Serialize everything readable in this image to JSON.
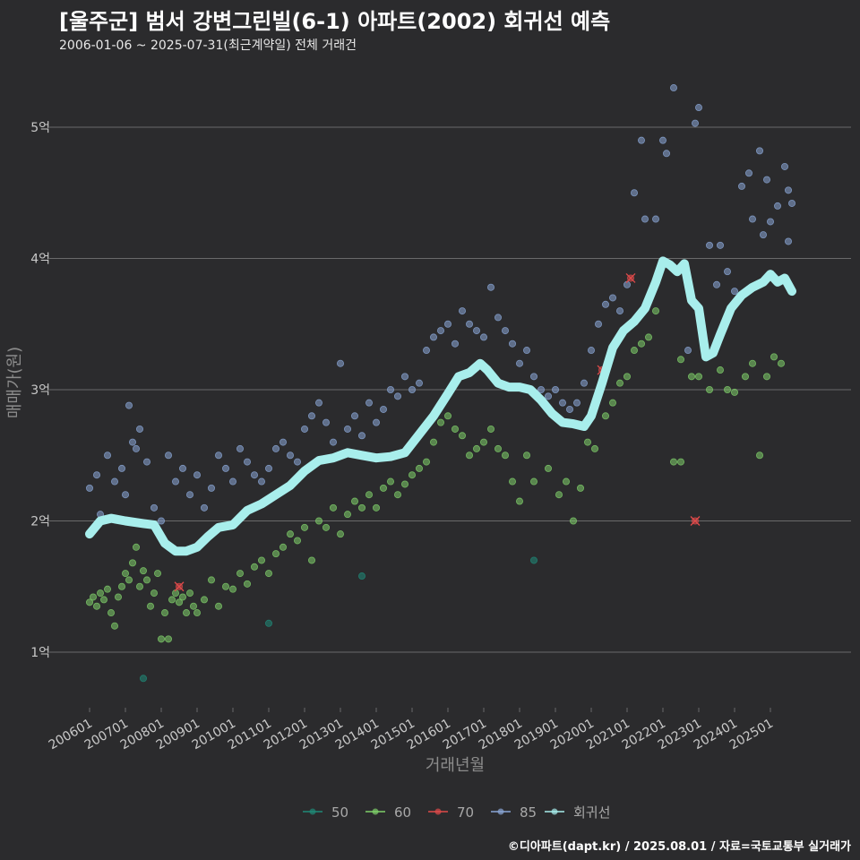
{
  "header": {
    "title": "[울주군] 범서 강변그린빌(6-1) 아파트(2002) 회귀선 예측",
    "subtitle": "2006-01-06 ~ 2025-07-31(최근계약일) 전체 거래건"
  },
  "footer": {
    "credit": "©디아파트(dapt.kr) / 2025.08.01 / 자료=국토교통부 실거래가"
  },
  "colors": {
    "s50": "#1f8a78",
    "s60": "#7fd06a",
    "s70": "#e04a4a",
    "s85": "#8aa6d6",
    "regression": "#a8eeec",
    "grid": "#6a6a6a",
    "background": "#2b2b2d"
  },
  "chart_data": {
    "type": "scatter",
    "xlabel": "거래년월",
    "ylabel": "매매가(원)",
    "x_ticks": [
      "200601",
      "200701",
      "200801",
      "200901",
      "201001",
      "201101",
      "201201",
      "201301",
      "201401",
      "201501",
      "201601",
      "201701",
      "201801",
      "201901",
      "202001",
      "202101",
      "202201",
      "202301",
      "202401",
      "202501"
    ],
    "y_ticks": [
      {
        "value": 1,
        "label": "1억"
      },
      {
        "value": 2,
        "label": "2억"
      },
      {
        "value": 3,
        "label": "3억"
      },
      {
        "value": 4,
        "label": "4억"
      },
      {
        "value": 5,
        "label": "5억"
      }
    ],
    "ylim": [
      0.6,
      5.5
    ],
    "xlim": [
      2005.6,
      2026.1
    ],
    "y_unit": "억",
    "legend_position": "bottom",
    "legend": [
      "50",
      "60",
      "70",
      "85",
      "회귀선"
    ],
    "series": [
      {
        "name": "50",
        "points": [
          [
            2007.5,
            0.8
          ],
          [
            2011.0,
            1.22
          ],
          [
            2013.6,
            1.58
          ],
          [
            2018.4,
            1.7
          ]
        ]
      },
      {
        "name": "60",
        "points": [
          [
            2006.0,
            1.38
          ],
          [
            2006.1,
            1.42
          ],
          [
            2006.2,
            1.35
          ],
          [
            2006.3,
            1.45
          ],
          [
            2006.4,
            1.4
          ],
          [
            2006.5,
            1.48
          ],
          [
            2006.6,
            1.3
          ],
          [
            2006.7,
            1.2
          ],
          [
            2006.8,
            1.42
          ],
          [
            2006.9,
            1.5
          ],
          [
            2007.0,
            1.6
          ],
          [
            2007.1,
            1.55
          ],
          [
            2007.2,
            1.68
          ],
          [
            2007.3,
            1.8
          ],
          [
            2007.4,
            1.5
          ],
          [
            2007.5,
            1.62
          ],
          [
            2007.6,
            1.55
          ],
          [
            2007.7,
            1.35
          ],
          [
            2007.8,
            1.45
          ],
          [
            2007.9,
            1.6
          ],
          [
            2008.0,
            1.1
          ],
          [
            2008.1,
            1.3
          ],
          [
            2008.2,
            1.1
          ],
          [
            2008.3,
            1.4
          ],
          [
            2008.4,
            1.45
          ],
          [
            2008.5,
            1.38
          ],
          [
            2008.6,
            1.42
          ],
          [
            2008.7,
            1.3
          ],
          [
            2008.8,
            1.45
          ],
          [
            2008.9,
            1.35
          ],
          [
            2009.0,
            1.3
          ],
          [
            2009.2,
            1.4
          ],
          [
            2009.4,
            1.55
          ],
          [
            2009.6,
            1.35
          ],
          [
            2009.8,
            1.5
          ],
          [
            2010.0,
            1.48
          ],
          [
            2010.2,
            1.6
          ],
          [
            2010.4,
            1.52
          ],
          [
            2010.6,
            1.65
          ],
          [
            2010.8,
            1.7
          ],
          [
            2011.0,
            1.6
          ],
          [
            2011.2,
            1.75
          ],
          [
            2011.4,
            1.8
          ],
          [
            2011.6,
            1.9
          ],
          [
            2011.8,
            1.85
          ],
          [
            2012.0,
            1.95
          ],
          [
            2012.2,
            1.7
          ],
          [
            2012.4,
            2.0
          ],
          [
            2012.6,
            1.95
          ],
          [
            2012.8,
            2.1
          ],
          [
            2013.0,
            1.9
          ],
          [
            2013.2,
            2.05
          ],
          [
            2013.4,
            2.15
          ],
          [
            2013.6,
            2.1
          ],
          [
            2013.8,
            2.2
          ],
          [
            2014.0,
            2.1
          ],
          [
            2014.2,
            2.25
          ],
          [
            2014.4,
            2.3
          ],
          [
            2014.6,
            2.2
          ],
          [
            2014.8,
            2.28
          ],
          [
            2015.0,
            2.35
          ],
          [
            2015.2,
            2.4
          ],
          [
            2015.4,
            2.45
          ],
          [
            2015.6,
            2.6
          ],
          [
            2015.8,
            2.75
          ],
          [
            2016.0,
            2.8
          ],
          [
            2016.2,
            2.7
          ],
          [
            2016.4,
            2.65
          ],
          [
            2016.6,
            2.5
          ],
          [
            2016.8,
            2.55
          ],
          [
            2017.0,
            2.6
          ],
          [
            2017.2,
            2.7
          ],
          [
            2017.4,
            2.55
          ],
          [
            2017.6,
            2.5
          ],
          [
            2017.8,
            2.3
          ],
          [
            2018.0,
            2.15
          ],
          [
            2018.2,
            2.5
          ],
          [
            2018.4,
            2.3
          ],
          [
            2018.8,
            2.4
          ],
          [
            2019.1,
            2.2
          ],
          [
            2019.3,
            2.3
          ],
          [
            2019.5,
            2.0
          ],
          [
            2019.7,
            2.25
          ],
          [
            2019.9,
            2.6
          ],
          [
            2020.1,
            2.55
          ],
          [
            2020.4,
            2.8
          ],
          [
            2020.6,
            2.9
          ],
          [
            2020.8,
            3.05
          ],
          [
            2021.0,
            3.1
          ],
          [
            2021.2,
            3.3
          ],
          [
            2021.4,
            3.35
          ],
          [
            2021.6,
            3.4
          ],
          [
            2021.8,
            3.6
          ],
          [
            2022.5,
            3.23
          ],
          [
            2022.8,
            3.1
          ],
          [
            2023.0,
            3.1
          ],
          [
            2023.3,
            3.0
          ],
          [
            2023.6,
            3.15
          ],
          [
            2023.8,
            3.0
          ],
          [
            2024.0,
            2.98
          ],
          [
            2024.3,
            3.1
          ],
          [
            2024.5,
            3.2
          ],
          [
            2024.7,
            2.5
          ],
          [
            2024.9,
            3.1
          ],
          [
            2025.1,
            3.25
          ],
          [
            2025.3,
            3.2
          ],
          [
            2022.3,
            2.45
          ],
          [
            2022.5,
            2.45
          ]
        ]
      },
      {
        "name": "70",
        "points": [
          [
            2008.5,
            1.5
          ],
          [
            2020.3,
            3.15
          ],
          [
            2021.1,
            3.85
          ],
          [
            2022.9,
            2.0
          ]
        ]
      },
      {
        "name": "85",
        "points": [
          [
            2006.0,
            2.25
          ],
          [
            2006.2,
            2.35
          ],
          [
            2006.3,
            2.05
          ],
          [
            2006.5,
            2.5
          ],
          [
            2006.7,
            2.3
          ],
          [
            2006.9,
            2.4
          ],
          [
            2007.0,
            2.2
          ],
          [
            2007.1,
            2.88
          ],
          [
            2007.2,
            2.6
          ],
          [
            2007.3,
            2.55
          ],
          [
            2007.4,
            2.7
          ],
          [
            2007.6,
            2.45
          ],
          [
            2007.8,
            2.1
          ],
          [
            2008.0,
            2.0
          ],
          [
            2008.2,
            2.5
          ],
          [
            2008.4,
            2.3
          ],
          [
            2008.6,
            2.4
          ],
          [
            2008.8,
            2.2
          ],
          [
            2009.0,
            2.35
          ],
          [
            2009.2,
            2.1
          ],
          [
            2009.4,
            2.25
          ],
          [
            2009.6,
            2.5
          ],
          [
            2009.8,
            2.4
          ],
          [
            2010.0,
            2.3
          ],
          [
            2010.2,
            2.55
          ],
          [
            2010.4,
            2.45
          ],
          [
            2010.6,
            2.35
          ],
          [
            2010.8,
            2.3
          ],
          [
            2011.0,
            2.4
          ],
          [
            2011.2,
            2.55
          ],
          [
            2011.4,
            2.6
          ],
          [
            2011.6,
            2.5
          ],
          [
            2011.8,
            2.45
          ],
          [
            2012.0,
            2.7
          ],
          [
            2012.2,
            2.8
          ],
          [
            2012.4,
            2.9
          ],
          [
            2012.6,
            2.75
          ],
          [
            2012.8,
            2.6
          ],
          [
            2013.0,
            3.2
          ],
          [
            2013.2,
            2.7
          ],
          [
            2013.4,
            2.8
          ],
          [
            2013.6,
            2.65
          ],
          [
            2013.8,
            2.9
          ],
          [
            2014.0,
            2.75
          ],
          [
            2014.2,
            2.85
          ],
          [
            2014.4,
            3.0
          ],
          [
            2014.6,
            2.95
          ],
          [
            2014.8,
            3.1
          ],
          [
            2015.0,
            3.0
          ],
          [
            2015.2,
            3.05
          ],
          [
            2015.4,
            3.3
          ],
          [
            2015.6,
            3.4
          ],
          [
            2015.8,
            3.45
          ],
          [
            2016.0,
            3.5
          ],
          [
            2016.2,
            3.35
          ],
          [
            2016.4,
            3.6
          ],
          [
            2016.6,
            3.5
          ],
          [
            2016.8,
            3.45
          ],
          [
            2017.0,
            3.4
          ],
          [
            2017.2,
            3.78
          ],
          [
            2017.4,
            3.55
          ],
          [
            2017.6,
            3.45
          ],
          [
            2017.8,
            3.35
          ],
          [
            2018.0,
            3.2
          ],
          [
            2018.2,
            3.3
          ],
          [
            2018.4,
            3.1
          ],
          [
            2018.6,
            3.0
          ],
          [
            2018.8,
            2.95
          ],
          [
            2019.0,
            3.0
          ],
          [
            2019.2,
            2.9
          ],
          [
            2019.4,
            2.85
          ],
          [
            2019.6,
            2.9
          ],
          [
            2019.8,
            3.05
          ],
          [
            2020.0,
            3.3
          ],
          [
            2020.2,
            3.5
          ],
          [
            2020.4,
            3.65
          ],
          [
            2020.6,
            3.7
          ],
          [
            2020.8,
            3.6
          ],
          [
            2021.0,
            3.8
          ],
          [
            2021.2,
            4.5
          ],
          [
            2021.4,
            4.9
          ],
          [
            2021.5,
            4.3
          ],
          [
            2021.8,
            4.3
          ],
          [
            2022.0,
            4.9
          ],
          [
            2022.1,
            4.8
          ],
          [
            2022.3,
            5.3
          ],
          [
            2022.9,
            5.03
          ],
          [
            2023.0,
            5.15
          ],
          [
            2023.3,
            4.1
          ],
          [
            2023.6,
            4.1
          ],
          [
            2023.8,
            3.9
          ],
          [
            2024.0,
            3.75
          ],
          [
            2024.2,
            4.55
          ],
          [
            2024.4,
            4.65
          ],
          [
            2024.5,
            4.3
          ],
          [
            2024.7,
            4.82
          ],
          [
            2024.8,
            4.18
          ],
          [
            2024.9,
            4.6
          ],
          [
            2025.0,
            4.28
          ],
          [
            2025.2,
            4.4
          ],
          [
            2025.4,
            4.7
          ],
          [
            2025.5,
            4.52
          ],
          [
            2025.6,
            4.42
          ],
          [
            2025.5,
            4.13
          ],
          [
            2023.5,
            3.8
          ],
          [
            2022.7,
            3.3
          ]
        ]
      }
    ],
    "regression": [
      [
        2006.0,
        1.9
      ],
      [
        2006.3,
        2.0
      ],
      [
        2006.6,
        2.02
      ],
      [
        2007.0,
        2.0
      ],
      [
        2007.5,
        1.98
      ],
      [
        2007.8,
        1.97
      ],
      [
        2008.1,
        1.83
      ],
      [
        2008.4,
        1.77
      ],
      [
        2008.7,
        1.77
      ],
      [
        2009.0,
        1.8
      ],
      [
        2009.3,
        1.88
      ],
      [
        2009.6,
        1.95
      ],
      [
        2010.0,
        1.97
      ],
      [
        2010.4,
        2.08
      ],
      [
        2010.8,
        2.13
      ],
      [
        2011.2,
        2.2
      ],
      [
        2011.6,
        2.27
      ],
      [
        2012.0,
        2.38
      ],
      [
        2012.4,
        2.46
      ],
      [
        2012.8,
        2.48
      ],
      [
        2013.2,
        2.52
      ],
      [
        2013.6,
        2.5
      ],
      [
        2014.0,
        2.48
      ],
      [
        2014.4,
        2.49
      ],
      [
        2014.8,
        2.52
      ],
      [
        2015.2,
        2.66
      ],
      [
        2015.6,
        2.8
      ],
      [
        2016.0,
        2.97
      ],
      [
        2016.3,
        3.1
      ],
      [
        2016.6,
        3.13
      ],
      [
        2016.9,
        3.2
      ],
      [
        2017.1,
        3.15
      ],
      [
        2017.4,
        3.05
      ],
      [
        2017.7,
        3.02
      ],
      [
        2018.0,
        3.02
      ],
      [
        2018.3,
        3.0
      ],
      [
        2018.6,
        2.92
      ],
      [
        2018.9,
        2.82
      ],
      [
        2019.2,
        2.75
      ],
      [
        2019.5,
        2.74
      ],
      [
        2019.8,
        2.72
      ],
      [
        2020.0,
        2.8
      ],
      [
        2020.3,
        3.05
      ],
      [
        2020.6,
        3.32
      ],
      [
        2020.9,
        3.45
      ],
      [
        2021.2,
        3.52
      ],
      [
        2021.5,
        3.62
      ],
      [
        2021.8,
        3.82
      ],
      [
        2022.0,
        3.98
      ],
      [
        2022.2,
        3.95
      ],
      [
        2022.4,
        3.9
      ],
      [
        2022.6,
        3.96
      ],
      [
        2022.8,
        3.68
      ],
      [
        2023.0,
        3.62
      ],
      [
        2023.2,
        3.25
      ],
      [
        2023.4,
        3.28
      ],
      [
        2023.6,
        3.42
      ],
      [
        2023.9,
        3.62
      ],
      [
        2024.2,
        3.72
      ],
      [
        2024.5,
        3.78
      ],
      [
        2024.8,
        3.82
      ],
      [
        2025.0,
        3.88
      ],
      [
        2025.2,
        3.82
      ],
      [
        2025.4,
        3.85
      ],
      [
        2025.6,
        3.75
      ]
    ]
  }
}
